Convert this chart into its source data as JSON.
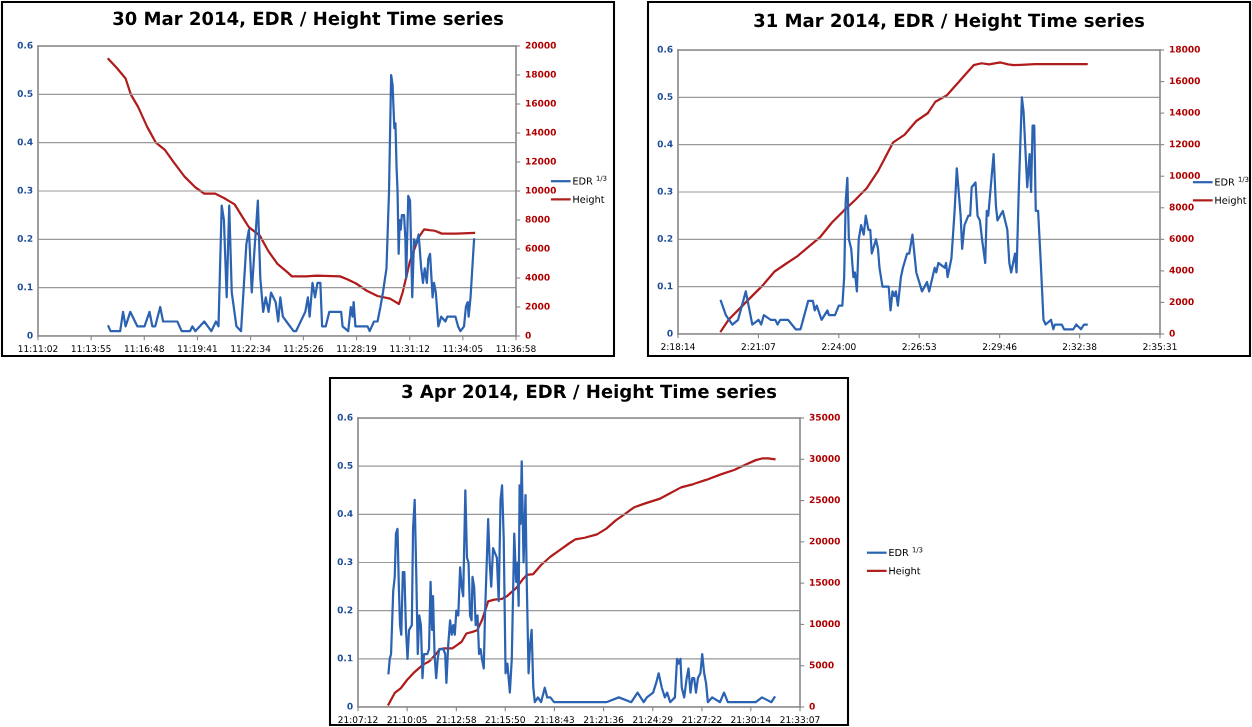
{
  "chart_data": [
    {
      "type": "line",
      "title": "30 Mar 2014, EDR / Height Time series",
      "legend": "right",
      "grid": "y",
      "xlim": [
        11.18389,
        11.61611
      ],
      "xticks": [
        {
          "value": 11.18389,
          "label": "11:11:02"
        },
        {
          "value": 11.23194,
          "label": "11:13:55"
        },
        {
          "value": 11.28,
          "label": "11:16:48"
        },
        {
          "value": 11.32806,
          "label": "11:19:41"
        },
        {
          "value": 11.37611,
          "label": "11:22:34"
        },
        {
          "value": 11.42389,
          "label": "11:25:26"
        },
        {
          "value": 11.47194,
          "label": "11:28:19"
        },
        {
          "value": 11.52,
          "label": "11:31:12"
        },
        {
          "value": 11.56806,
          "label": "11:34:05"
        },
        {
          "value": 11.61611,
          "label": "11:36:58"
        }
      ],
      "ylim": [
        0,
        0.6
      ],
      "yticks": [
        0,
        0.1,
        0.2,
        0.3,
        0.4,
        0.5,
        0.6
      ],
      "y2lim": [
        0,
        20000
      ],
      "y2ticks": [
        0,
        2000,
        4000,
        6000,
        8000,
        10000,
        12000,
        14000,
        16000,
        18000,
        20000
      ],
      "series": [
        {
          "name": "EDR $^{1/3}$",
          "color": "#2b63b2",
          "x": [
            11.2476,
            11.2495,
            11.2543,
            11.2582,
            11.2608,
            11.2631,
            11.2673,
            11.2737,
            11.2802,
            11.2847,
            11.2873,
            11.2899,
            11.2944,
            11.297,
            11.3028,
            11.3099,
            11.3138,
            11.3213,
            11.3235,
            11.3261,
            11.3342,
            11.3406,
            11.3448,
            11.3471,
            11.35,
            11.352,
            11.3545,
            11.3568,
            11.3591,
            11.3633,
            11.3675,
            11.3723,
            11.3746,
            11.3772,
            11.3794,
            11.3827,
            11.3849,
            11.3875,
            11.3898,
            11.3924,
            11.3946,
            11.3988,
            11.4011,
            11.403,
            11.4053,
            11.4085,
            11.415,
            11.4172,
            11.4256,
            11.4279,
            11.4295,
            11.4321,
            11.4344,
            11.4366,
            11.4392,
            11.4408,
            11.4441,
            11.4473,
            11.4521,
            11.4547,
            11.458,
            11.4593,
            11.4644,
            11.4667,
            11.4683,
            11.4693,
            11.4709,
            11.4764,
            11.4819,
            11.4838,
            11.4877,
            11.4909,
            11.4935,
            11.4958,
            11.499,
            11.5013,
            11.5032,
            11.5045,
            11.5061,
            11.5071,
            11.5081,
            11.509,
            11.51,
            11.511,
            11.5119,
            11.5129,
            11.5149,
            11.5161,
            11.5168,
            11.5187,
            11.5203,
            11.5223,
            11.5239,
            11.5258,
            11.5281,
            11.5304,
            11.532,
            11.5336,
            11.5355,
            11.5368,
            11.5384,
            11.5407,
            11.542,
            11.5436,
            11.5459,
            11.5485,
            11.5523,
            11.554,
            11.5582,
            11.5614,
            11.5637,
            11.5659,
            11.5691,
            11.5708,
            11.5724,
            11.5733,
            11.575,
            11.5782
          ],
          "values": [
            0.02,
            0.01,
            0.01,
            0.01,
            0.05,
            0.02,
            0.05,
            0.02,
            0.02,
            0.05,
            0.02,
            0.02,
            0.06,
            0.03,
            0.03,
            0.03,
            0.01,
            0.01,
            0.02,
            0.01,
            0.03,
            0.01,
            0.03,
            0.02,
            0.27,
            0.24,
            0.08,
            0.27,
            0.09,
            0.02,
            0.01,
            0.19,
            0.22,
            0.09,
            0.17,
            0.28,
            0.12,
            0.05,
            0.08,
            0.05,
            0.09,
            0.07,
            0.03,
            0.08,
            0.04,
            0.03,
            0.01,
            0.01,
            0.05,
            0.08,
            0.04,
            0.11,
            0.08,
            0.11,
            0.11,
            0.02,
            0.02,
            0.05,
            0.05,
            0.05,
            0.05,
            0.02,
            0.01,
            0.06,
            0.04,
            0.07,
            0.02,
            0.02,
            0.02,
            0.01,
            0.03,
            0.03,
            0.06,
            0.09,
            0.14,
            0.3,
            0.54,
            0.52,
            0.43,
            0.44,
            0.35,
            0.3,
            0.17,
            0.24,
            0.22,
            0.25,
            0.25,
            0.2,
            0.12,
            0.29,
            0.28,
            0.08,
            0.2,
            0.19,
            0.21,
            0.14,
            0.11,
            0.14,
            0.11,
            0.16,
            0.17,
            0.08,
            0.11,
            0.09,
            0.02,
            0.04,
            0.03,
            0.04,
            0.04,
            0.04,
            0.02,
            0.01,
            0.02,
            0.06,
            0.07,
            0.04,
            0.08,
            0.2
          ]
        },
        {
          "name": "Height",
          "color": "#b01c1c",
          "axis": "y2",
          "x": [
            11.2476,
            11.255,
            11.2631,
            11.2679,
            11.2744,
            11.2825,
            11.2905,
            11.2986,
            11.3067,
            11.3164,
            11.3261,
            11.3342,
            11.3439,
            11.352,
            11.3617,
            11.3681,
            11.3746,
            11.3843,
            11.3924,
            11.4004,
            11.4101,
            11.4134,
            11.4263,
            11.436,
            11.457,
            11.4635,
            11.4715,
            11.4812,
            11.4909,
            11.5022,
            11.5103,
            11.5136,
            11.52,
            11.5281,
            11.533,
            11.5378,
            11.5426,
            11.5491,
            11.562,
            11.5782
          ],
          "values": [
            19100,
            18500,
            17760,
            16650,
            15800,
            14440,
            13330,
            12840,
            11980,
            10990,
            10260,
            9820,
            9820,
            9520,
            9080,
            8290,
            7500,
            6940,
            5830,
            4970,
            4350,
            4110,
            4110,
            4160,
            4110,
            3910,
            3620,
            3120,
            2760,
            2580,
            2210,
            3000,
            5090,
            6810,
            7360,
            7300,
            7260,
            7060,
            7060,
            7110
          ]
        }
      ]
    },
    {
      "type": "line",
      "title": "31 Mar 2014, EDR / Height Time series",
      "legend": "right",
      "grid": "y",
      "xlim": [
        2.30389,
        2.59194
      ],
      "xticks": [
        {
          "value": 2.30389,
          "label": "2:18:14"
        },
        {
          "value": 2.35194,
          "label": "2:21:07"
        },
        {
          "value": 2.4,
          "label": "2:24:00"
        },
        {
          "value": 2.44806,
          "label": "2:26:53"
        },
        {
          "value": 2.49611,
          "label": "2:29:46"
        },
        {
          "value": 2.54389,
          "label": "2:32:38"
        },
        {
          "value": 2.59194,
          "label": "2:35:31"
        }
      ],
      "ylim": [
        0,
        0.6
      ],
      "yticks": [
        0,
        0.1,
        0.2,
        0.3,
        0.4,
        0.5,
        0.6
      ],
      "y2lim": [
        0,
        18000
      ],
      "y2ticks": [
        0,
        2000,
        4000,
        6000,
        8000,
        10000,
        12000,
        14000,
        16000,
        18000
      ],
      "series": [
        {
          "name": "EDR $^{1/3}$",
          "color": "#2b63b2",
          "x": [
            2.3295,
            2.3325,
            2.3364,
            2.3398,
            2.3444,
            2.3483,
            2.352,
            2.3536,
            2.3552,
            2.3593,
            2.362,
            2.3634,
            2.365,
            2.3696,
            2.3742,
            2.3771,
            2.3817,
            2.3845,
            2.3856,
            2.3868,
            2.3897,
            2.3932,
            2.3941,
            2.3977,
            2.4,
            2.4021,
            2.4032,
            2.4041,
            2.4051,
            2.406,
            2.4074,
            2.4087,
            2.4096,
            2.4108,
            2.4119,
            2.4133,
            2.4149,
            2.4161,
            2.4177,
            2.4188,
            2.4197,
            2.4222,
            2.4234,
            2.4243,
            2.4261,
            2.4298,
            2.4309,
            2.4321,
            2.4332,
            2.4341,
            2.4353,
            2.4371,
            2.4383,
            2.4408,
            2.4421,
            2.444,
            2.4463,
            2.4497,
            2.4527,
            2.454,
            2.4573,
            2.4582,
            2.4595,
            2.4632,
            2.4641,
            2.465,
            2.4673,
            2.4692,
            2.4705,
            2.4728,
            2.4737,
            2.4751,
            2.4774,
            2.4785,
            2.4794,
            2.4817,
            2.4829,
            2.4843,
            2.4856,
            2.4875,
            2.4884,
            2.4893,
            2.4925,
            2.4939,
            2.4948,
            2.498,
            2.5007,
            2.5019,
            2.503,
            2.5053,
            2.5062,
            2.5076,
            2.5094,
            2.5104,
            2.5126,
            2.514,
            2.5149,
            2.5158,
            2.5168,
            2.5177,
            2.5191,
            2.5207,
            2.5223,
            2.5236,
            2.5268,
            2.5282,
            2.5291,
            2.5332,
            2.5346,
            2.5401,
            2.5419,
            2.5447,
            2.5465,
            2.5481
          ],
          "values": [
            0.07,
            0.04,
            0.02,
            0.03,
            0.09,
            0.02,
            0.03,
            0.02,
            0.04,
            0.03,
            0.03,
            0.02,
            0.03,
            0.03,
            0.01,
            0.01,
            0.07,
            0.07,
            0.05,
            0.06,
            0.03,
            0.05,
            0.04,
            0.04,
            0.06,
            0.06,
            0.12,
            0.28,
            0.33,
            0.2,
            0.18,
            0.12,
            0.13,
            0.09,
            0.2,
            0.23,
            0.21,
            0.25,
            0.22,
            0.22,
            0.17,
            0.2,
            0.18,
            0.14,
            0.1,
            0.1,
            0.05,
            0.09,
            0.08,
            0.09,
            0.06,
            0.12,
            0.14,
            0.17,
            0.17,
            0.21,
            0.13,
            0.09,
            0.11,
            0.09,
            0.14,
            0.13,
            0.15,
            0.14,
            0.15,
            0.12,
            0.16,
            0.26,
            0.35,
            0.25,
            0.18,
            0.23,
            0.25,
            0.25,
            0.31,
            0.32,
            0.25,
            0.24,
            0.2,
            0.15,
            0.26,
            0.25,
            0.38,
            0.27,
            0.24,
            0.26,
            0.22,
            0.15,
            0.13,
            0.17,
            0.13,
            0.31,
            0.5,
            0.47,
            0.31,
            0.38,
            0.3,
            0.44,
            0.44,
            0.26,
            0.26,
            0.15,
            0.03,
            0.02,
            0.03,
            0.01,
            0.02,
            0.02,
            0.01,
            0.01,
            0.02,
            0.01,
            0.02,
            0.02
          ]
        },
        {
          "name": "Height",
          "color": "#b01c1c",
          "axis": "y2",
          "x": [
            2.3295,
            2.3341,
            2.341,
            2.3478,
            2.3547,
            2.3616,
            2.3684,
            2.3753,
            2.3822,
            2.389,
            2.3959,
            2.4028,
            2.4096,
            2.4165,
            2.4234,
            2.4325,
            2.4394,
            2.4463,
            2.4531,
            2.4577,
            2.4646,
            2.4714,
            2.476,
            2.4806,
            2.4852,
            2.4898,
            2.4966,
            2.5012,
            2.5046,
            2.5172,
            2.5264,
            2.5481
          ],
          "values": [
            170,
            900,
            1640,
            2370,
            3100,
            3960,
            4450,
            4940,
            5550,
            6160,
            7070,
            7800,
            8480,
            9220,
            10320,
            12150,
            12640,
            13500,
            13990,
            14720,
            15130,
            15940,
            16500,
            17040,
            17160,
            17090,
            17210,
            17090,
            17040,
            17110,
            17110,
            17110
          ]
        }
      ]
    },
    {
      "type": "line",
      "title": "3 Apr 2014, EDR / Height Time series",
      "legend": "right",
      "grid": "y",
      "xlim": [
        21.12,
        21.55194
      ],
      "xticks": [
        {
          "value": 21.12,
          "label": "21:07:12"
        },
        {
          "value": 21.16806,
          "label": "21:10:05"
        },
        {
          "value": 21.21611,
          "label": "21:12:58"
        },
        {
          "value": 21.26389,
          "label": "21:15:50"
        },
        {
          "value": 21.31194,
          "label": "21:18:43"
        },
        {
          "value": 21.36,
          "label": "21:21:36"
        },
        {
          "value": 21.40806,
          "label": "21:24:29"
        },
        {
          "value": 21.45611,
          "label": "21:27:22"
        },
        {
          "value": 21.50389,
          "label": "21:30:14"
        },
        {
          "value": 21.55194,
          "label": "21:33:07"
        }
      ],
      "ylim": [
        0,
        0.6
      ],
      "yticks": [
        0,
        0.1,
        0.2,
        0.3,
        0.4,
        0.5,
        0.6
      ],
      "y2lim": [
        0,
        35000
      ],
      "y2ticks": [
        0,
        5000,
        10000,
        15000,
        20000,
        25000,
        30000,
        35000
      ],
      "series": [
        {
          "name": "EDR $^{1/3}$",
          "color": "#2b63b2",
          "x": [
            21.1498,
            21.151,
            21.1523,
            21.1544,
            21.1559,
            21.1571,
            21.1586,
            21.1599,
            21.1611,
            21.1623,
            21.1638,
            21.1653,
            21.1669,
            21.1684,
            21.1699,
            21.1726,
            21.1738,
            21.1754,
            21.1769,
            21.1784,
            21.1799,
            21.1815,
            21.183,
            21.1845,
            21.1878,
            21.1894,
            21.1909,
            21.1924,
            21.1933,
            21.1948,
            21.1964,
            21.1979,
            21.1994,
            21.2034,
            21.2052,
            21.2064,
            21.2082,
            21.21,
            21.2116,
            21.2131,
            21.2146,
            21.2161,
            21.218,
            21.2198,
            21.2213,
            21.2228,
            21.2249,
            21.2265,
            21.228,
            21.2295,
            21.231,
            21.2319,
            21.2335,
            21.235,
            21.2368,
            21.2383,
            21.2399,
            21.2411,
            21.2429,
            21.2441,
            21.2472,
            21.2487,
            21.2502,
            21.252,
            21.2538,
            21.2557,
            21.2575,
            21.2593,
            21.2608,
            21.2624,
            21.2642,
            21.266,
            21.2684,
            21.2703,
            21.2727,
            21.2745,
            21.2757,
            21.277,
            21.2779,
            21.2788,
            21.28,
            21.2818,
            21.2837,
            21.2849,
            21.2867,
            21.2882,
            21.2897,
            21.2913,
            21.2928,
            21.2958,
            21.2989,
            21.3025,
            21.3049,
            21.308,
            21.3116,
            21.3202,
            21.3323,
            21.3506,
            21.3627,
            21.3749,
            21.3871,
            21.3932,
            21.3962,
            21.3992,
            21.4023,
            21.4084,
            21.4114,
            21.4138,
            21.4169,
            21.4199,
            21.4221,
            21.4251,
            21.4297,
            21.4318,
            21.4333,
            21.4351,
            21.4364,
            21.4388,
            21.4412,
            21.443,
            21.4449,
            21.4467,
            21.4485,
            21.4503,
            21.4522,
            21.4546,
            21.4564,
            21.4583,
            21.4601,
            21.4619,
            21.4662,
            21.4738,
            21.4777,
            21.4814,
            21.4905,
            21.5087,
            21.5148,
            21.524,
            21.527
          ],
          "values": [
            0.07,
            0.1,
            0.11,
            0.24,
            0.27,
            0.36,
            0.37,
            0.25,
            0.17,
            0.15,
            0.28,
            0.28,
            0.16,
            0.1,
            0.16,
            0.17,
            0.37,
            0.43,
            0.28,
            0.11,
            0.19,
            0.17,
            0.06,
            0.11,
            0.11,
            0.12,
            0.26,
            0.16,
            0.23,
            0.11,
            0.06,
            0.1,
            0.12,
            0.12,
            0.11,
            0.05,
            0.13,
            0.18,
            0.15,
            0.17,
            0.15,
            0.2,
            0.19,
            0.29,
            0.25,
            0.23,
            0.45,
            0.31,
            0.3,
            0.19,
            0.18,
            0.27,
            0.25,
            0.17,
            0.19,
            0.11,
            0.12,
            0.1,
            0.08,
            0.19,
            0.39,
            0.3,
            0.25,
            0.33,
            0.32,
            0.31,
            0.22,
            0.43,
            0.46,
            0.35,
            0.07,
            0.09,
            0.03,
            0.1,
            0.36,
            0.26,
            0.3,
            0.21,
            0.46,
            0.38,
            0.51,
            0.3,
            0.44,
            0.26,
            0.07,
            0.13,
            0.16,
            0.04,
            0.01,
            0.02,
            0.01,
            0.04,
            0.02,
            0.02,
            0.01,
            0.01,
            0.01,
            0.01,
            0.01,
            0.02,
            0.01,
            0.03,
            0.02,
            0.01,
            0.02,
            0.03,
            0.05,
            0.07,
            0.04,
            0.02,
            0.03,
            0.01,
            0.02,
            0.1,
            0.09,
            0.1,
            0.04,
            0.02,
            0.06,
            0.08,
            0.03,
            0.06,
            0.06,
            0.03,
            0.06,
            0.07,
            0.11,
            0.07,
            0.05,
            0.01,
            0.02,
            0.01,
            0.03,
            0.01,
            0.01,
            0.01,
            0.02,
            0.01,
            0.02
          ]
        },
        {
          "name": "Height",
          "color": "#b01c1c",
          "axis": "y2",
          "x": [
            21.1498,
            21.1559,
            21.162,
            21.1681,
            21.1741,
            21.1833,
            21.1894,
            21.1954,
            21.2,
            21.2046,
            21.2122,
            21.2167,
            21.2213,
            21.2259,
            21.2319,
            21.2365,
            21.2411,
            21.2472,
            21.2532,
            21.2608,
            21.2654,
            21.2745,
            21.2806,
            21.2852,
            21.2913,
            21.2989,
            21.308,
            21.3171,
            21.3262,
            21.3323,
            21.3414,
            21.3536,
            21.3627,
            21.3719,
            21.381,
            21.3901,
            21.3992,
            21.4145,
            21.4236,
            21.4357,
            21.4479,
            21.4601,
            21.4753,
            21.4875,
            21.4996,
            21.5087,
            21.5148,
            21.5209,
            21.527
          ],
          "values": [
            300,
            1700,
            2300,
            3300,
            4100,
            5100,
            5500,
            6300,
            7000,
            7100,
            7100,
            7500,
            7900,
            8900,
            9100,
            9300,
            10500,
            12800,
            13000,
            13100,
            13400,
            14400,
            15400,
            16000,
            16100,
            17200,
            18200,
            19000,
            19800,
            20300,
            20500,
            20900,
            21600,
            22600,
            23400,
            24200,
            24600,
            25200,
            25800,
            26600,
            27000,
            27500,
            28200,
            28700,
            29400,
            29900,
            30100,
            30100,
            30000
          ]
        }
      ]
    }
  ]
}
